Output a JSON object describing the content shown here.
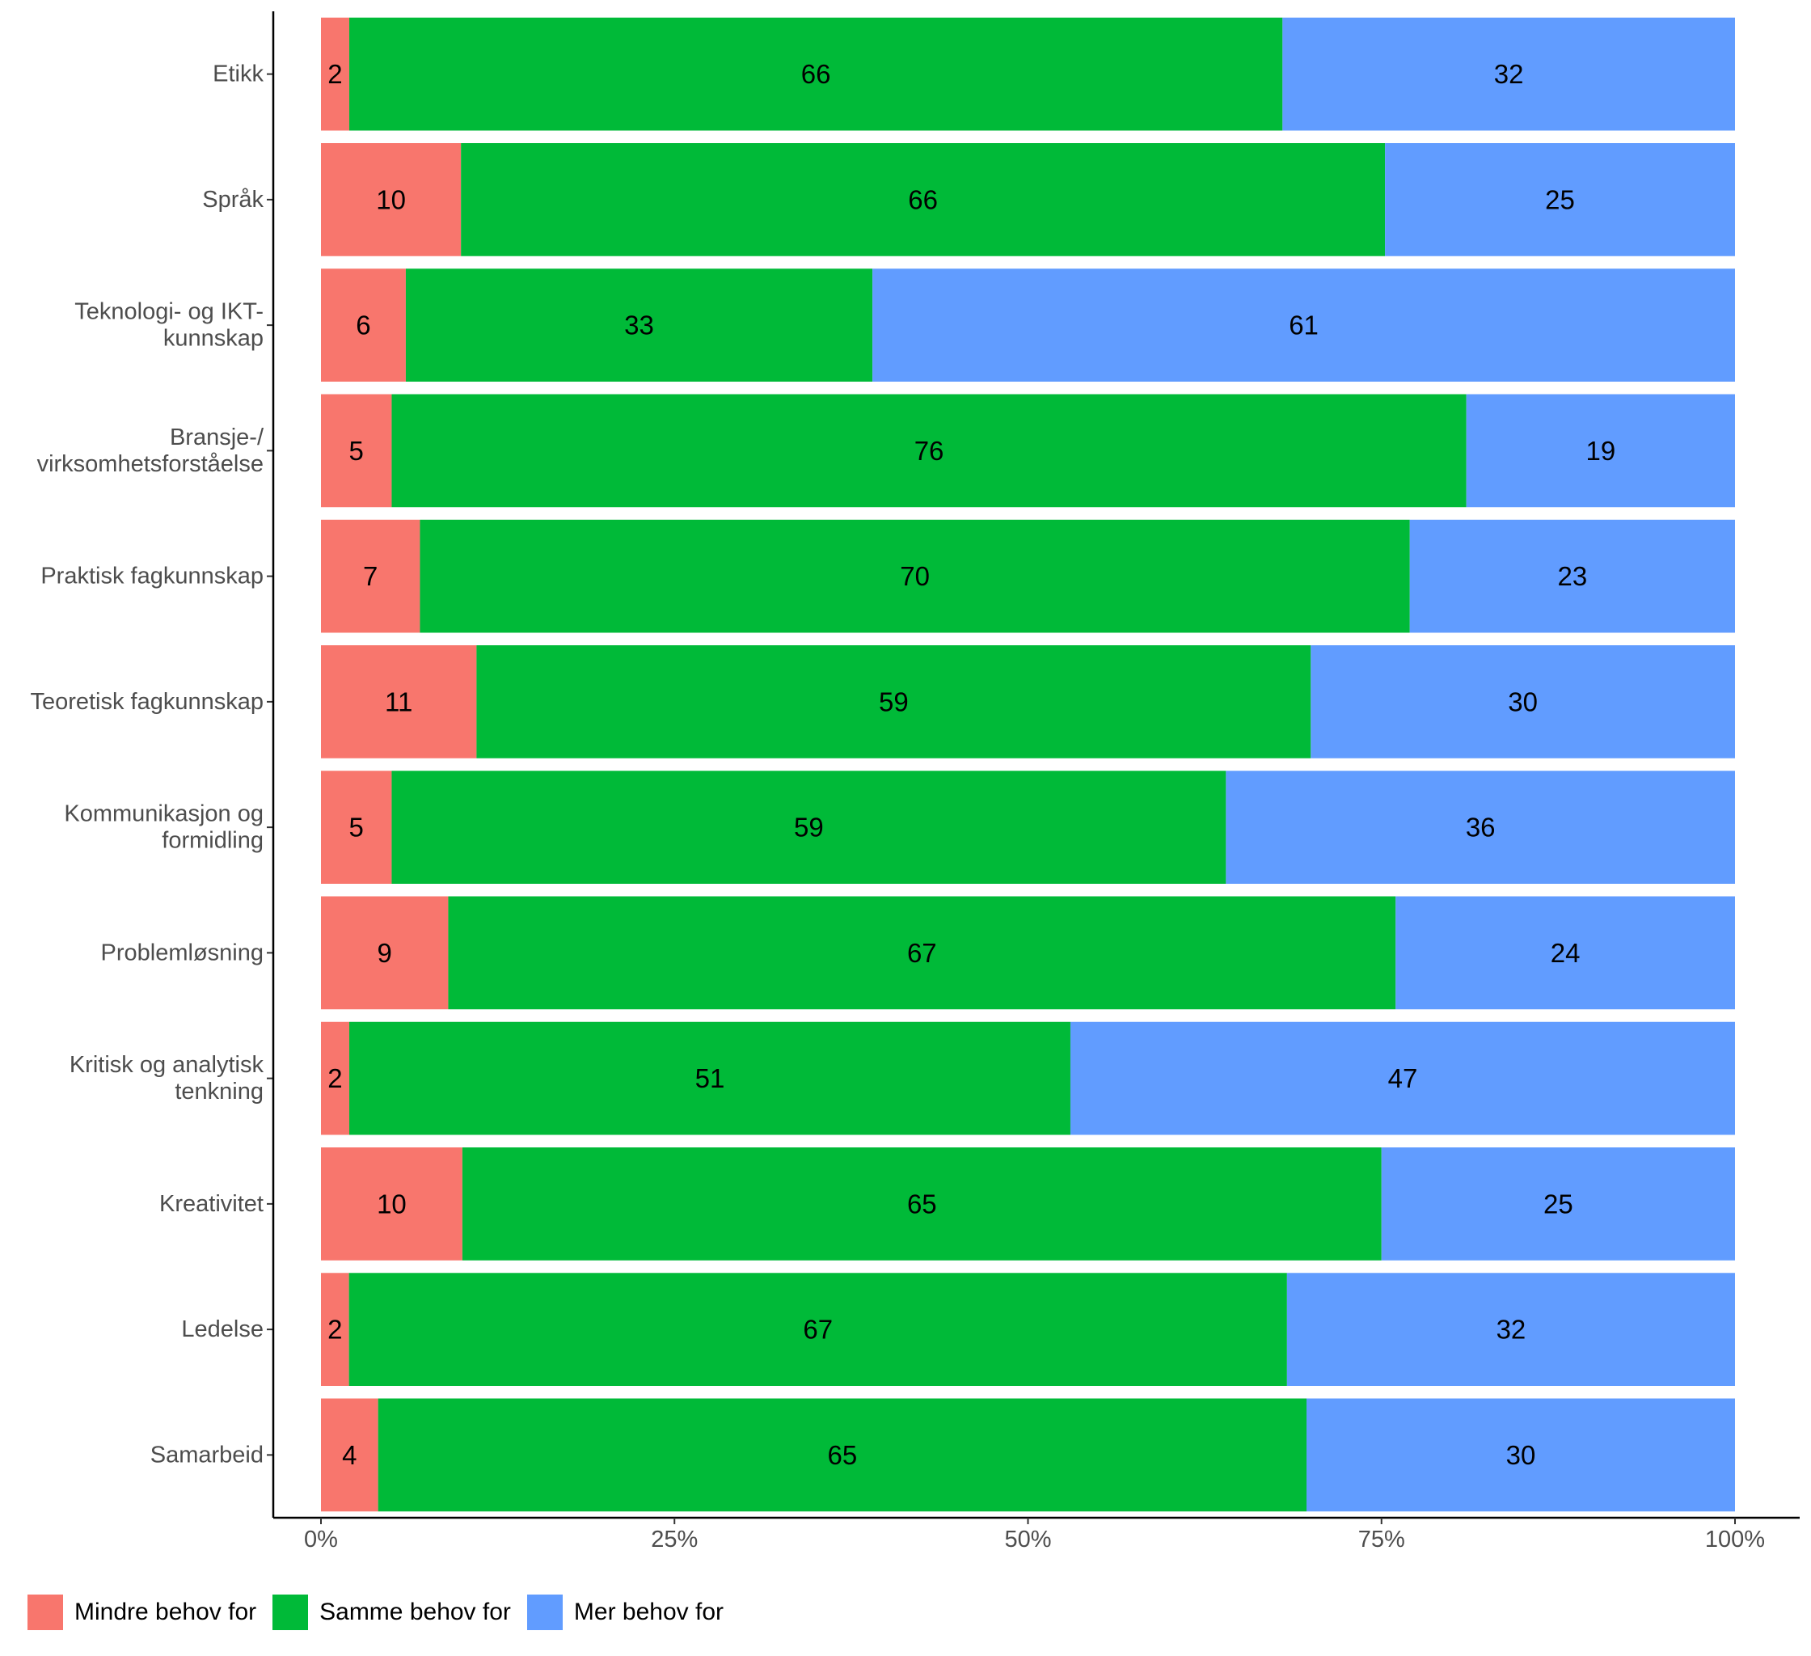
{
  "chart_data": {
    "type": "bar",
    "orientation": "horizontal",
    "stacked": true,
    "normalized": true,
    "categories": [
      "Etikk",
      "Språk",
      "Teknologi- og IKT-\nkunnskap",
      "Bransje-/\nvirksomhetsforståelse",
      "Praktisk fagkunnskap",
      "Teoretisk fagkunnskap",
      "Kommunikasjon og\nformidling",
      "Problemløsning",
      "Kritisk og analytisk\ntenkning",
      "Kreativitet",
      "Ledelse",
      "Samarbeid"
    ],
    "series": [
      {
        "name": "Mindre behov for",
        "color": "#F8766D",
        "values": [
          2,
          10,
          6,
          5,
          7,
          11,
          5,
          9,
          2,
          10,
          2,
          4
        ]
      },
      {
        "name": "Samme behov for",
        "color": "#00BA38",
        "values": [
          66,
          66,
          33,
          76,
          70,
          59,
          59,
          67,
          51,
          65,
          67,
          65
        ]
      },
      {
        "name": "Mer behov for",
        "color": "#619CFF",
        "values": [
          32,
          25,
          61,
          19,
          23,
          30,
          36,
          24,
          47,
          25,
          32,
          30
        ]
      }
    ],
    "x_ticks": [
      "0%",
      "25%",
      "50%",
      "75%",
      "100%"
    ],
    "xlim": [
      0,
      100
    ],
    "xlabel": "",
    "ylabel": "",
    "grid": false,
    "legend_position": "bottom-left"
  }
}
